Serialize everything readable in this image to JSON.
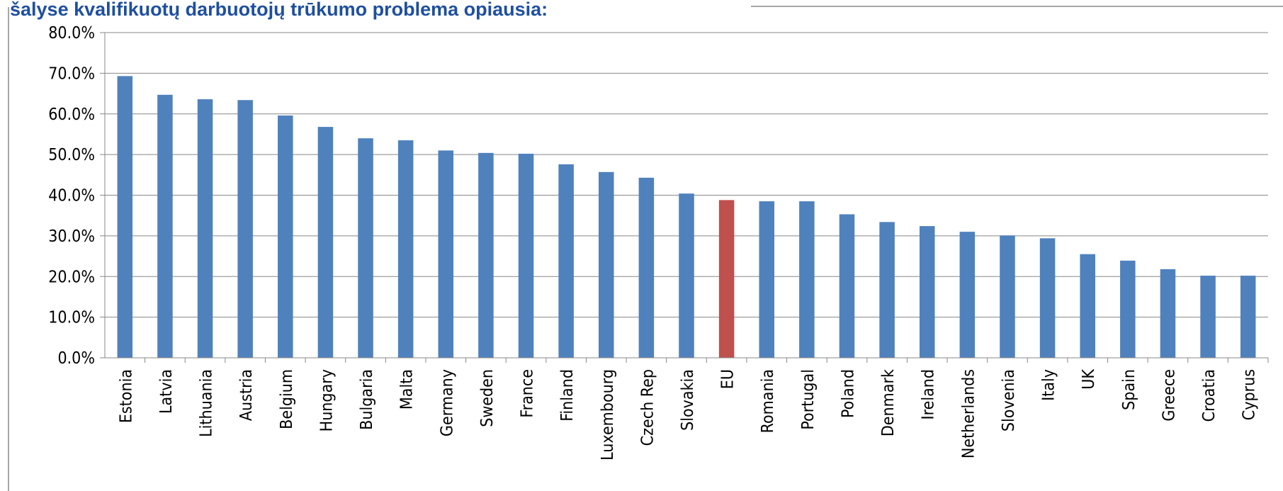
{
  "chart_data": {
    "type": "bar",
    "title": "šalyse kvalifikuotų darbuotojų trūkumo problema opiausia:",
    "categories": [
      "Estonia",
      "Latvia",
      "Lithuania",
      "Austria",
      "Belgium",
      "Hungary",
      "Bulgaria",
      "Malta",
      "Germany",
      "Sweden",
      "France",
      "Finland",
      "Luxembourg",
      "Czech Rep",
      "Slovakia",
      "EU",
      "Romania",
      "Portugal",
      "Poland",
      "Denmark",
      "Ireland",
      "Netherlands",
      "Slovenia",
      "Italy",
      "UK",
      "Spain",
      "Greece",
      "Croatia",
      "Cyprus"
    ],
    "values": [
      69.3,
      64.7,
      63.6,
      63.4,
      59.6,
      56.8,
      54.0,
      53.5,
      51.0,
      50.4,
      50.2,
      47.6,
      45.7,
      44.3,
      40.4,
      38.8,
      38.5,
      38.5,
      35.3,
      33.4,
      32.4,
      31.0,
      30.1,
      29.4,
      25.5,
      23.9,
      21.8,
      20.2,
      20.2
    ],
    "colors": [
      "#4f81bd",
      "#4f81bd",
      "#4f81bd",
      "#4f81bd",
      "#4f81bd",
      "#4f81bd",
      "#4f81bd",
      "#4f81bd",
      "#4f81bd",
      "#4f81bd",
      "#4f81bd",
      "#4f81bd",
      "#4f81bd",
      "#4f81bd",
      "#4f81bd",
      "#c0504d",
      "#4f81bd",
      "#4f81bd",
      "#4f81bd",
      "#4f81bd",
      "#4f81bd",
      "#4f81bd",
      "#4f81bd",
      "#4f81bd",
      "#4f81bd",
      "#4f81bd",
      "#4f81bd",
      "#4f81bd",
      "#4f81bd"
    ],
    "ylim": [
      0,
      80
    ],
    "yticks": [
      {
        "value": 0,
        "label": "0.0%"
      },
      {
        "value": 10,
        "label": "10.0%"
      },
      {
        "value": 20,
        "label": "20.0%"
      },
      {
        "value": 30,
        "label": "30.0%"
      },
      {
        "value": 40,
        "label": "40.0%"
      },
      {
        "value": 50,
        "label": "50.0%"
      },
      {
        "value": 60,
        "label": "60.0%"
      },
      {
        "value": 70,
        "label": "70.0%"
      },
      {
        "value": 80,
        "label": "80.0%"
      }
    ],
    "grid": true
  }
}
